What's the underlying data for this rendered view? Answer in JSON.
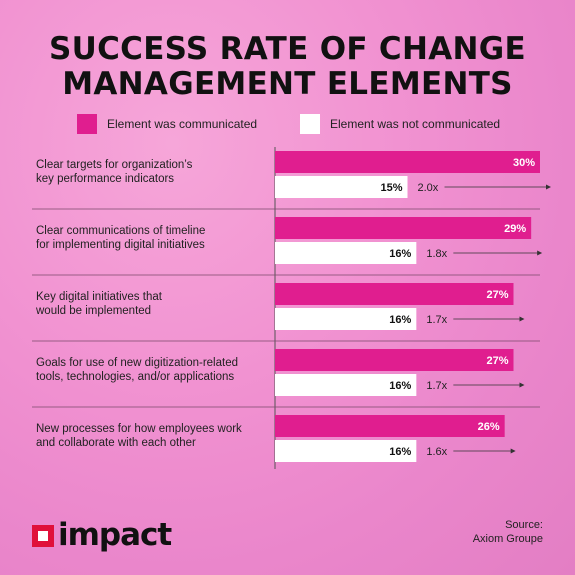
{
  "title_line1": "SUCCESS RATE OF CHANGE",
  "title_line2": "MANAGEMENT ELEMENTS",
  "legend": {
    "communicated": "Element was communicated",
    "not_communicated": "Element was not communicated"
  },
  "colors": {
    "communicated": "#e01e8f",
    "not_communicated": "#ffffff",
    "text": "#111111"
  },
  "chart_data": {
    "type": "bar",
    "orientation": "horizontal",
    "title": "SUCCESS RATE OF CHANGE MANAGEMENT ELEMENTS",
    "categories": [
      [
        "Clear targets for organization’s",
        "key performance indicators"
      ],
      [
        "Clear communications of timeline",
        "for implementing digital initiatives"
      ],
      [
        "Key digital initiatives that",
        "would be implemented"
      ],
      [
        "Goals for use of new digitization-related",
        "tools, technologies, and/or applications"
      ],
      [
        "New processes for how employees work",
        "and collaborate with each other"
      ]
    ],
    "series": [
      {
        "name": "Element was communicated",
        "values": [
          30,
          29,
          27,
          27,
          26
        ],
        "labels": [
          "30%",
          "29%",
          "27%",
          "27%",
          "26%"
        ]
      },
      {
        "name": "Element was not communicated",
        "values": [
          15,
          16,
          16,
          16,
          16
        ],
        "labels": [
          "15%",
          "16%",
          "16%",
          "16%",
          "16%"
        ]
      }
    ],
    "ratios": [
      "2.0x",
      "1.8x",
      "1.7x",
      "1.7x",
      "1.6x"
    ],
    "unit": "%",
    "xlim": [
      0,
      30
    ],
    "legend_position": "top",
    "grid": false
  },
  "brand": {
    "logo_text": "impact"
  },
  "source": {
    "line1": "Source:",
    "line2": "Axiom Groupe"
  }
}
